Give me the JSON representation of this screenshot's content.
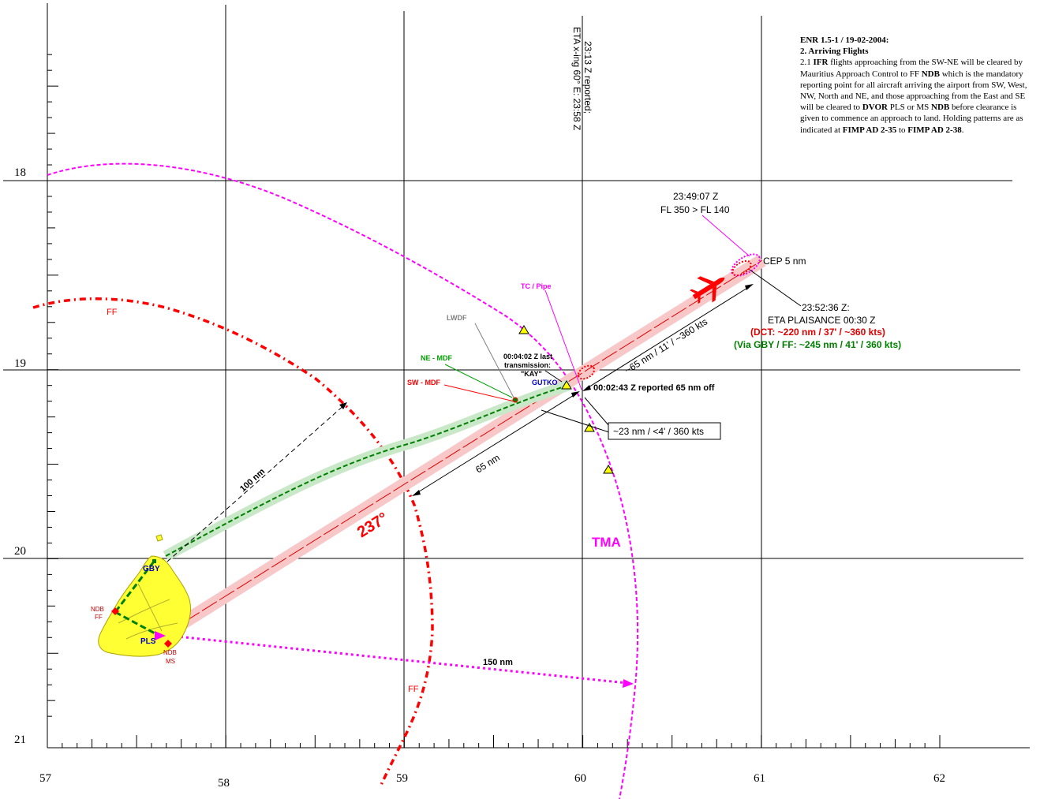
{
  "axes": {
    "x_ticks": [
      "57",
      "58",
      "59",
      "60",
      "61",
      "62"
    ],
    "y_ticks": [
      "18",
      "19",
      "20",
      "21"
    ]
  },
  "note": {
    "heading": "ENR 1.5-1  / 19-02-2004:",
    "subheading": "2. Arriving Flights",
    "p_a": "2.1 ",
    "p_b": "IFR",
    "p_c": " flights approaching from the SW-NE will be cleared by Mauritius Approach Control to FF ",
    "p_d": "NDB",
    "p_e": " which is the mandatory reporting point for all aircraft arriving the airport from SW, West, NW, North and NE, and those approaching from the East and SE will be cleared to ",
    "p_f": "DVOR",
    "p_g": " PLS or MS ",
    "p_h": "NDB",
    "p_i": " before clearance is given to commence an approach to land. Holding patterns are as indicated at ",
    "p_j": "FIMP AD 2-35",
    "p_k": " to ",
    "p_l": "FIMP AD 2-38",
    "p_m": "."
  },
  "labels": {
    "eta_line1": "23:13 Z reported;",
    "eta_line2": "ETA x-ing 60° E: 23:58 Z",
    "t_descent_time": "23:49:07 Z",
    "t_descent_fl": "FL 350 > FL 140",
    "cep": "CEP 5 nm",
    "t_last_time": "23:52:36 Z:",
    "eta_plaisance": "ETA PLAISANCE 00:30 Z",
    "dct": "(DCT: ~220 nm / 37' / ~360 kts)",
    "via_gby": "(Via GBY / FF: ~245 nm / 41' / 360 kts)",
    "seg_65_11": "~65 nm / 11' / ~360 kts",
    "reported_65": "00:02:43 Z reported 65 nm off",
    "box_23": "~23 nm / <4' / 360 kts",
    "last_tx_1": "00:04:02 Z last",
    "last_tx_2": "transmission:",
    "last_tx_3": "\"KAY\"",
    "gutko": "GUTKO",
    "tc_pipe": "TC / Pipe",
    "lwdf": "LWDF",
    "ne_mdf": "NE - MDF",
    "sw_mdf": "SW - MDF",
    "dist_65": "65 nm",
    "dist_100": "100 nm",
    "bearing": "237°",
    "tma": "TMA",
    "dist_150": "150 nm",
    "ff_top": "FF",
    "ff_bottom": "FF",
    "gby": "GBY",
    "ndb_ff_1": "NDB",
    "ndb_ff_2": "FF",
    "pls": "PLS",
    "ndb_ms_1": "NDB",
    "ndb_ms_2": "MS"
  },
  "colors": {
    "magenta": "#ff00ff",
    "red": "#ff0000",
    "green": "#008000",
    "island": "#ffff33",
    "navy": "#0000c0"
  }
}
